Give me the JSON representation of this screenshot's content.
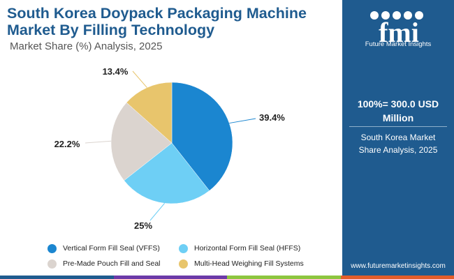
{
  "title": {
    "line1": "South Korea Doypack Packaging Machine",
    "line2": "Market By Filling Technology"
  },
  "subtitle": "Market Share (%) Analysis, 2025",
  "sidebar": {
    "logo_text": "fmi",
    "logo_caption": "Future Market Insights",
    "total_value": "100%= 300.0 USD Million",
    "total_caption": "South Korea Market Share Analysis, 2025",
    "website": "www.futuremarketinsights.com"
  },
  "colors": {
    "brand": "#1f5b8f",
    "stripe": [
      "#1f5b8f",
      "#6c3aa8",
      "#8dc63f",
      "#e35d2b"
    ]
  },
  "chart_data": {
    "type": "pie",
    "title": "",
    "slices": [
      {
        "name": "Vertical Form Fill Seal (VFFS)",
        "value": 39.4,
        "label": "39.4%",
        "color": "#1b86d0"
      },
      {
        "name": "Horizontal Form Fill Seal (HFFS)",
        "value": 25,
        "label": "25%",
        "color": "#6ecff5"
      },
      {
        "name": "Pre-Made Pouch Fill and Seal",
        "value": 22.2,
        "label": "22.2%",
        "color": "#dbd4cf"
      },
      {
        "name": "Multi-Head Weighing Fill Systems",
        "value": 13.4,
        "label": "13.4%",
        "color": "#e8c56c"
      }
    ],
    "start": "12 o'clock",
    "direction": "clockwise",
    "legend": "bottom"
  }
}
